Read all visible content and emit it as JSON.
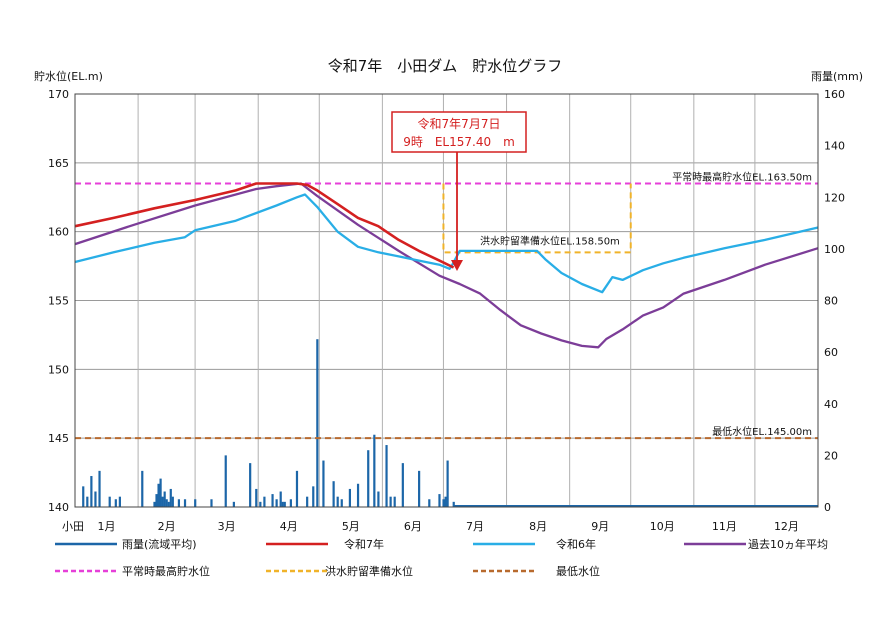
{
  "chart_data": {
    "type": "line",
    "title": "令和7年　小田ダム　貯水位グラフ",
    "ylabel": "貯水位(EL.m)",
    "y2label": "雨量(mm)",
    "corner_label": "小田",
    "ylim": [
      140,
      170
    ],
    "y2lim": [
      0,
      160
    ],
    "yticks": [
      140,
      145,
      150,
      155,
      160,
      165,
      170
    ],
    "y2ticks": [
      0,
      20,
      40,
      60,
      80,
      100,
      120,
      140,
      160
    ],
    "month_labels": [
      "1月",
      "2月",
      "3月",
      "4月",
      "5月",
      "6月",
      "7月",
      "8月",
      "9月",
      "10月",
      "11月",
      "12月"
    ],
    "x_unit": "day_of_year",
    "xlim": [
      1,
      366
    ],
    "grid": true,
    "legend_position": "bottom",
    "annotation": {
      "line1": "令和7年7月7日",
      "line2": "9時　EL157.40　m",
      "color": "#d42020"
    },
    "reference_labels": {
      "max": "平常時最高貯水位EL.163.50m",
      "flood": "洪水貯留準備水位EL.158.50m",
      "min": "最低水位EL.145.00m"
    },
    "series": [
      {
        "name": "令和7年",
        "axis": "left",
        "color": "#d42020",
        "x": [
          1,
          20,
          40,
          60,
          80,
          90,
          100,
          110,
          115,
          120,
          130,
          140,
          150,
          160,
          170,
          180,
          187
        ],
        "y": [
          160.4,
          161.0,
          161.7,
          162.3,
          163.0,
          163.5,
          163.5,
          163.5,
          163.4,
          163.0,
          162.0,
          161.0,
          160.4,
          159.4,
          158.6,
          157.9,
          157.4
        ]
      },
      {
        "name": "令和6年",
        "axis": "left",
        "color": "#29aee6",
        "x": [
          1,
          20,
          40,
          55,
          60,
          80,
          100,
          110,
          114,
          120,
          130,
          140,
          150,
          160,
          170,
          180,
          185,
          186,
          190,
          200,
          205,
          210,
          220,
          228,
          232,
          240,
          250,
          260,
          265,
          270,
          280,
          290,
          300,
          320,
          340,
          366
        ],
        "y": [
          157.8,
          158.5,
          159.2,
          159.6,
          160.1,
          160.8,
          161.9,
          162.5,
          162.7,
          161.8,
          160.0,
          158.9,
          158.5,
          158.2,
          157.9,
          157.6,
          157.3,
          157.5,
          158.6,
          158.6,
          158.6,
          158.6,
          158.6,
          158.6,
          158.0,
          157.0,
          156.2,
          155.6,
          156.7,
          156.5,
          157.2,
          157.7,
          158.1,
          158.8,
          159.4,
          160.3
        ]
      },
      {
        "name": "過去10ヵ年平均",
        "axis": "left",
        "color": "#7c3d98",
        "x": [
          1,
          30,
          60,
          90,
          100,
          112,
          120,
          140,
          160,
          180,
          190,
          200,
          210,
          220,
          230,
          240,
          250,
          258,
          262,
          270,
          280,
          290,
          300,
          320,
          340,
          366
        ],
        "y": [
          159.1,
          160.5,
          161.9,
          163.1,
          163.3,
          163.5,
          162.6,
          160.5,
          158.6,
          156.8,
          156.2,
          155.5,
          154.3,
          153.2,
          152.6,
          152.1,
          151.7,
          151.6,
          152.2,
          152.9,
          153.9,
          154.5,
          155.5,
          156.5,
          157.6,
          158.8
        ]
      }
    ],
    "rainfall": {
      "name": "雨量(流域平均)",
      "axis": "right",
      "color": "#1c66a8",
      "x": [
        5,
        7,
        9,
        11,
        13,
        18,
        21,
        23,
        34,
        40,
        41,
        42,
        43,
        44,
        45,
        46,
        47,
        48,
        49,
        52,
        55,
        60,
        68,
        75,
        79,
        87,
        90,
        92,
        94,
        98,
        100,
        102,
        103,
        104,
        107,
        110,
        115,
        118,
        120,
        123,
        128,
        130,
        132,
        136,
        140,
        145,
        148,
        150,
        154,
        156,
        158,
        162,
        170,
        175,
        180,
        182,
        183,
        184,
        187
      ],
      "values": [
        8,
        4,
        12,
        6,
        14,
        4,
        3,
        4,
        14,
        2,
        5,
        9,
        11,
        4,
        6,
        3,
        2,
        7,
        4,
        3,
        3,
        3,
        3,
        20,
        2,
        17,
        7,
        2,
        4,
        5,
        3,
        6,
        2,
        2,
        3,
        14,
        4,
        8,
        65,
        18,
        10,
        4,
        3,
        7,
        9,
        22,
        28,
        6,
        24,
        4,
        4,
        17,
        14,
        3,
        5,
        3,
        4,
        18,
        2
      ]
    },
    "reference_lines": [
      {
        "name": "平常時最高貯水位",
        "y": 163.5,
        "color": "#e63fd8",
        "style": "dashed"
      },
      {
        "name": "洪水貯留準備水位",
        "y": 158.5,
        "x_range": [
          182,
          274
        ],
        "color": "#f0b32a",
        "style": "dashed"
      },
      {
        "name": "最低水位",
        "y": 145.0,
        "color": "#b86a2e",
        "style": "dashed"
      }
    ],
    "legend": [
      {
        "label": "雨量(流域平均)",
        "color": "#1c66a8",
        "style": "solid"
      },
      {
        "label": "令和7年",
        "color": "#d42020",
        "style": "solid"
      },
      {
        "label": "令和6年",
        "color": "#29aee6",
        "style": "solid"
      },
      {
        "label": "過去10ヵ年平均",
        "color": "#7c3d98",
        "style": "solid"
      },
      {
        "label": "平常時最高貯水位",
        "color": "#e63fd8",
        "style": "dashed"
      },
      {
        "label": "洪水貯留準備水位",
        "color": "#f0b32a",
        "style": "dashed"
      },
      {
        "label": "最低水位",
        "color": "#b86a2e",
        "style": "dashed"
      }
    ]
  }
}
